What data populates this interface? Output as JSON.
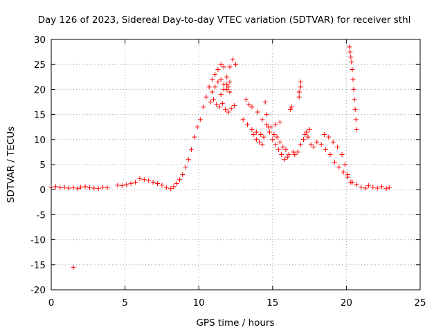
{
  "chart_data": {
    "type": "scatter",
    "title": "Day 126 of 2023, Sidereal Day-to-day VTEC variation (SDTVAR) for receiver sthl",
    "xlabel": "GPS time / hours",
    "ylabel": "SDTVAR / TECUs",
    "xlim": [
      0,
      25
    ],
    "ylim": [
      -20,
      30
    ],
    "xticks": [
      0,
      5,
      10,
      15,
      20,
      25
    ],
    "yticks": [
      -20,
      -15,
      -10,
      -5,
      0,
      5,
      10,
      15,
      20,
      25,
      30
    ],
    "xtick_labels": [
      "0",
      "5",
      "10",
      "15",
      "20",
      "25"
    ],
    "ytick_labels": [
      "-20",
      "-15",
      "-10",
      "-5",
      "0",
      "5",
      "10",
      "15",
      "20",
      "25",
      "30"
    ],
    "grid": true,
    "marker": "+",
    "color": "#ff0000",
    "series": [
      {
        "name": "SDTVAR",
        "x": [
          0.0,
          0.3,
          0.6,
          0.9,
          1.2,
          1.5,
          1.8,
          2.0,
          2.3,
          2.6,
          2.9,
          3.2,
          3.5,
          3.8,
          4.5,
          4.8,
          5.1,
          5.4,
          5.7,
          6.0,
          6.3,
          6.6,
          6.9,
          7.2,
          7.5,
          7.8,
          8.1,
          8.3,
          8.5,
          8.7,
          8.9,
          9.1,
          9.3,
          9.5,
          9.7,
          9.9,
          10.1,
          10.3,
          10.5,
          10.7,
          10.9,
          11.1,
          11.3,
          11.5,
          11.7,
          11.9,
          12.1,
          10.8,
          11.0,
          11.2,
          11.4,
          11.6,
          11.8,
          12.0,
          12.2,
          12.4,
          11.5,
          11.7,
          11.9,
          12.1,
          10.9,
          11.1,
          11.3,
          11.5,
          11.7,
          11.9,
          12.0,
          12.1,
          12.3,
          12.5,
          13.2,
          13.4,
          13.6,
          13.0,
          13.3,
          13.6,
          13.9,
          14.2,
          14.4,
          14.5,
          14.6,
          14.7,
          14.8,
          15.0,
          15.2,
          15.4,
          15.6,
          15.8,
          16.0,
          14.0,
          14.3,
          14.6,
          14.9,
          15.2,
          15.5,
          13.7,
          13.9,
          14.1,
          14.3,
          15.1,
          15.3,
          15.5,
          15.7,
          15.9,
          16.1,
          16.2,
          16.3,
          16.4,
          16.5,
          16.7,
          16.9,
          17.1,
          17.3,
          17.5,
          17.2,
          17.4,
          17.6,
          17.8,
          18.0,
          18.3,
          18.6,
          18.9,
          19.2,
          19.5,
          19.8,
          20.1,
          20.4,
          20.7,
          21.0,
          21.3,
          18.5,
          18.8,
          19.1,
          19.4,
          19.7,
          19.9,
          20.1,
          20.3,
          16.8,
          16.8,
          16.9,
          16.9,
          20.2,
          20.25,
          20.3,
          20.35,
          20.4,
          20.45,
          20.5,
          20.55,
          20.6,
          20.65,
          20.7,
          21.5,
          21.8,
          22.1,
          22.4,
          22.7,
          22.9,
          1.5
        ],
        "values": [
          0.5,
          0.6,
          0.4,
          0.5,
          0.3,
          0.4,
          0.2,
          0.5,
          0.6,
          0.4,
          0.3,
          0.2,
          0.5,
          0.4,
          0.9,
          0.8,
          1.0,
          1.2,
          1.5,
          2.2,
          2.0,
          1.8,
          1.5,
          1.2,
          0.9,
          0.4,
          0.2,
          0.6,
          1.2,
          2.0,
          3.0,
          4.5,
          6.0,
          8.0,
          10.5,
          12.5,
          14.0,
          16.5,
          18.5,
          20.5,
          22.0,
          23.0,
          24.0,
          25.0,
          24.5,
          22.5,
          19.5,
          17.5,
          18.0,
          17.0,
          16.5,
          17.2,
          16.0,
          15.5,
          16.2,
          16.8,
          19.0,
          20.0,
          21.0,
          21.5,
          19.5,
          20.5,
          21.5,
          22.0,
          21.0,
          20.0,
          20.5,
          24.5,
          26.0,
          25.0,
          18.0,
          17.0,
          16.5,
          14.0,
          13.0,
          12.0,
          11.5,
          11.0,
          10.5,
          17.5,
          15.0,
          12.5,
          11.5,
          10.0,
          9.0,
          8.0,
          7.0,
          6.0,
          6.5,
          15.5,
          14.0,
          13.0,
          12.5,
          13.0,
          13.5,
          11.0,
          10.0,
          9.5,
          9.0,
          11.0,
          10.5,
          9.5,
          8.5,
          8.0,
          7.0,
          16.0,
          16.5,
          7.5,
          7.0,
          7.5,
          9.0,
          10.0,
          11.5,
          12.0,
          11.0,
          10.5,
          9.0,
          8.5,
          9.5,
          9.0,
          8.0,
          7.0,
          5.5,
          4.5,
          3.5,
          2.5,
          1.5,
          1.0,
          0.5,
          0.3,
          11.0,
          10.5,
          9.5,
          8.5,
          7.0,
          5.0,
          3.0,
          1.5,
          18.5,
          19.5,
          20.5,
          21.5,
          28.5,
          27.5,
          26.5,
          25.5,
          24.0,
          22.0,
          20.0,
          18.0,
          16.0,
          14.0,
          12.0,
          0.8,
          0.5,
          0.3,
          0.6,
          0.2,
          0.4,
          -15.5
        ]
      }
    ]
  }
}
